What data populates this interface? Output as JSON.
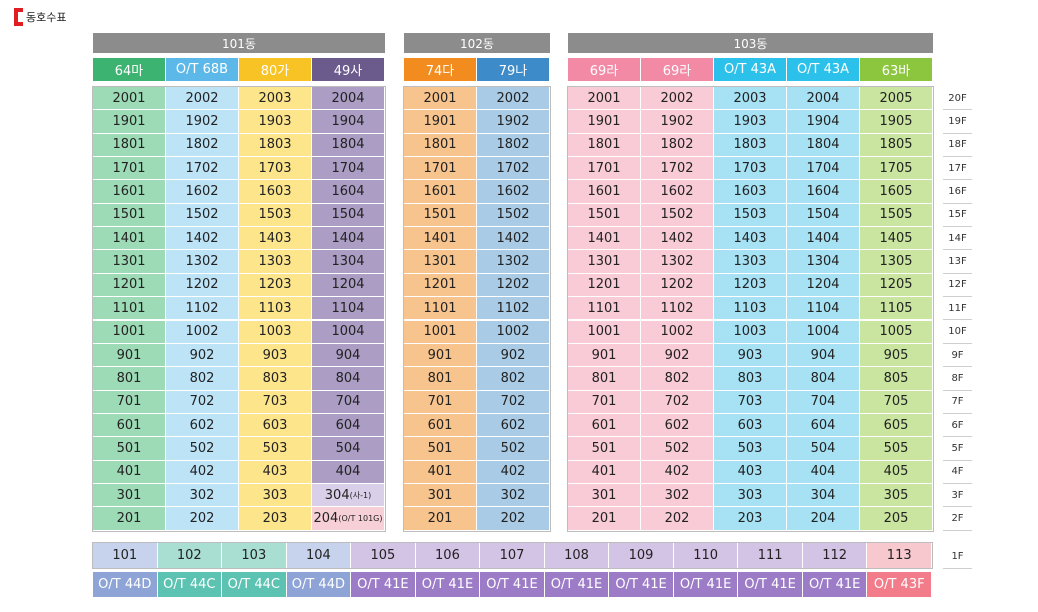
{
  "page_title": "동호수표",
  "buildings": [
    {
      "name": "101동",
      "columns": [
        {
          "type": "64마",
          "type_color": "#3cb371",
          "cell_color": "#9ddbb7",
          "units": [
            "2001",
            "1901",
            "1801",
            "1701",
            "1601",
            "1501",
            "1401",
            "1301",
            "1201",
            "1101",
            "1001",
            "901",
            "801",
            "701",
            "601",
            "501",
            "401",
            "301",
            "201"
          ]
        },
        {
          "type": "O/T 68B",
          "type_color": "#5bb8e8",
          "cell_color": "#bde3f6",
          "units": [
            "2002",
            "1902",
            "1802",
            "1702",
            "1602",
            "1502",
            "1402",
            "1302",
            "1202",
            "1102",
            "1002",
            "902",
            "802",
            "702",
            "602",
            "502",
            "402",
            "302",
            "202"
          ]
        },
        {
          "type": "80가",
          "type_color": "#f7c325",
          "cell_color": "#fde58c",
          "units": [
            "2003",
            "1903",
            "1803",
            "1703",
            "1603",
            "1503",
            "1403",
            "1303",
            "1203",
            "1103",
            "1003",
            "903",
            "803",
            "703",
            "603",
            "503",
            "403",
            "303",
            "203"
          ]
        },
        {
          "type": "49사",
          "type_color": "#6b5a8c",
          "cell_color": "#ab9dc4",
          "units": [
            "2004",
            "1904",
            "1804",
            "1704",
            "1604",
            "1504",
            "1404",
            "1304",
            "1204",
            "1104",
            "1004",
            "904",
            "804",
            "704",
            "604",
            "504",
            "404",
            "304",
            "204"
          ],
          "suffixes": {
            "304": "(사-1)",
            "204": "(O/T 101G)"
          },
          "special_colors": {
            "304": "#d9cfe8",
            "204": "#f7cfd6"
          }
        }
      ]
    },
    {
      "name": "102동",
      "columns": [
        {
          "type": "74다",
          "type_color": "#f28c1f",
          "cell_color": "#f7c48d",
          "units": [
            "2001",
            "1901",
            "1801",
            "1701",
            "1601",
            "1501",
            "1401",
            "1301",
            "1201",
            "1101",
            "1001",
            "901",
            "801",
            "701",
            "601",
            "501",
            "401",
            "301",
            "201"
          ]
        },
        {
          "type": "79나",
          "type_color": "#3d8bc9",
          "cell_color": "#a9cbe6",
          "units": [
            "2002",
            "1902",
            "1802",
            "1702",
            "1602",
            "1502",
            "1402",
            "1302",
            "1202",
            "1102",
            "1002",
            "902",
            "802",
            "702",
            "602",
            "502",
            "402",
            "302",
            "202"
          ]
        }
      ]
    },
    {
      "name": "103동",
      "columns": [
        {
          "type": "69라",
          "type_color": "#f28aa6",
          "cell_color": "#f8cbd6",
          "units": [
            "2001",
            "1901",
            "1801",
            "1701",
            "1601",
            "1501",
            "1401",
            "1301",
            "1201",
            "1101",
            "1001",
            "901",
            "801",
            "701",
            "601",
            "501",
            "401",
            "301",
            "201"
          ]
        },
        {
          "type": "69라",
          "type_color": "#f28aa6",
          "cell_color": "#f8cbd6",
          "units": [
            "2002",
            "1902",
            "1802",
            "1702",
            "1602",
            "1502",
            "1402",
            "1302",
            "1202",
            "1102",
            "1002",
            "902",
            "802",
            "702",
            "602",
            "502",
            "402",
            "302",
            "202"
          ]
        },
        {
          "type": "O/T 43A",
          "type_color": "#2cc1ea",
          "cell_color": "#a6e2f4",
          "units": [
            "2003",
            "1903",
            "1803",
            "1703",
            "1603",
            "1503",
            "1403",
            "1303",
            "1203",
            "1103",
            "1003",
            "903",
            "803",
            "703",
            "603",
            "503",
            "403",
            "303",
            "203"
          ]
        },
        {
          "type": "O/T 43A",
          "type_color": "#2cc1ea",
          "cell_color": "#a6e2f4",
          "units": [
            "2004",
            "1904",
            "1804",
            "1704",
            "1604",
            "1504",
            "1404",
            "1304",
            "1204",
            "1104",
            "1004",
            "904",
            "804",
            "704",
            "604",
            "504",
            "404",
            "304",
            "204"
          ]
        },
        {
          "type": "63바",
          "type_color": "#8cc63f",
          "cell_color": "#c9e5a0",
          "units": [
            "2005",
            "1905",
            "1805",
            "1705",
            "1605",
            "1505",
            "1405",
            "1305",
            "1205",
            "1105",
            "1005",
            "905",
            "805",
            "705",
            "605",
            "505",
            "405",
            "305",
            "205"
          ]
        }
      ]
    }
  ],
  "floors": [
    "20F",
    "19F",
    "18F",
    "17F",
    "16F",
    "15F",
    "14F",
    "13F",
    "12F",
    "11F",
    "10F",
    "9F",
    "8F",
    "7F",
    "6F",
    "5F",
    "4F",
    "3F",
    "2F"
  ],
  "ground_floor": {
    "label": "1F",
    "units": [
      {
        "unit": "101",
        "type": "O/T 44D",
        "cell_color": "#c7d3ec",
        "type_color": "#8ea3d6"
      },
      {
        "unit": "102",
        "type": "O/T 44C",
        "cell_color": "#a9ded3",
        "type_color": "#5cc3b2"
      },
      {
        "unit": "103",
        "type": "O/T 44C",
        "cell_color": "#a9ded3",
        "type_color": "#5cc3b2"
      },
      {
        "unit": "104",
        "type": "O/T 44D",
        "cell_color": "#c7d3ec",
        "type_color": "#8ea3d6"
      },
      {
        "unit": "105",
        "type": "O/T 41E",
        "cell_color": "#d3c3e4",
        "type_color": "#9c7cc7"
      },
      {
        "unit": "106",
        "type": "O/T 41E",
        "cell_color": "#d3c3e4",
        "type_color": "#9c7cc7"
      },
      {
        "unit": "107",
        "type": "O/T 41E",
        "cell_color": "#d3c3e4",
        "type_color": "#9c7cc7"
      },
      {
        "unit": "108",
        "type": "O/T 41E",
        "cell_color": "#d3c3e4",
        "type_color": "#9c7cc7"
      },
      {
        "unit": "109",
        "type": "O/T 41E",
        "cell_color": "#d3c3e4",
        "type_color": "#9c7cc7"
      },
      {
        "unit": "110",
        "type": "O/T 41E",
        "cell_color": "#d3c3e4",
        "type_color": "#9c7cc7"
      },
      {
        "unit": "111",
        "type": "O/T 41E",
        "cell_color": "#d3c3e4",
        "type_color": "#9c7cc7"
      },
      {
        "unit": "112",
        "type": "O/T 41E",
        "cell_color": "#d3c3e4",
        "type_color": "#9c7cc7"
      },
      {
        "unit": "113",
        "type": "O/T 43F",
        "cell_color": "#f7c9cf",
        "type_color": "#f27c8a"
      }
    ]
  }
}
